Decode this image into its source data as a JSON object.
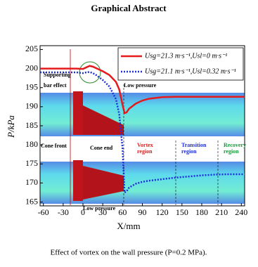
{
  "header": {
    "title": "Graphical Abstract"
  },
  "chart_data": {
    "type": "line",
    "x_label": "X/mm",
    "y_label": "P/kPa",
    "x": [
      -65,
      -40,
      -20,
      -10,
      0,
      5,
      10,
      15,
      20,
      30,
      40,
      50,
      55,
      60,
      63,
      66,
      70,
      80,
      90,
      100,
      120,
      140,
      160,
      180,
      200,
      220,
      245
    ],
    "series": [
      {
        "name": "Usg=21.3 m·s⁻¹,Usl=0 m·s⁻¹",
        "color": "#e41a1c",
        "style": "solid",
        "values": [
          200,
          200,
          200,
          200,
          199.9,
          200.3,
          200.7,
          200.5,
          200.1,
          199.3,
          198.3,
          196.5,
          194.5,
          190.5,
          188.3,
          188.5,
          189.5,
          190.8,
          191.6,
          192.1,
          192.5,
          192.6,
          192.6,
          192.6,
          192.6,
          192.6,
          192.6
        ]
      },
      {
        "name": "Usg=21.1 m·s⁻¹,Usl=0.32 m·s⁻¹",
        "color": "#1f2fd6",
        "style": "dotted",
        "values": [
          199,
          199,
          199,
          199,
          198.8,
          199,
          199.1,
          198.8,
          198.3,
          197,
          195.3,
          192,
          188,
          179,
          167.5,
          167.8,
          168.8,
          169.8,
          170.3,
          170.6,
          171,
          171.4,
          171.7,
          172,
          172.2,
          172.3,
          172.3
        ]
      }
    ],
    "xlim": [
      -65,
      245
    ],
    "xticks": [
      -60,
      -30,
      0,
      30,
      60,
      90,
      120,
      150,
      180,
      210,
      240
    ],
    "ylim": [
      164,
      206
    ],
    "yticks": [
      165,
      170,
      175,
      180,
      185,
      190,
      195,
      200,
      205
    ],
    "legend": "upper right",
    "annotations": [
      "Supporting",
      "bar effect",
      "Low pressure",
      "Cone front",
      "Cone end",
      "Vortex",
      "region",
      "Transition",
      "region",
      "Recovery",
      "region",
      "Low pressure"
    ]
  },
  "caption": "Effect of vortex on the wall pressure (P=0.2 MPa)."
}
